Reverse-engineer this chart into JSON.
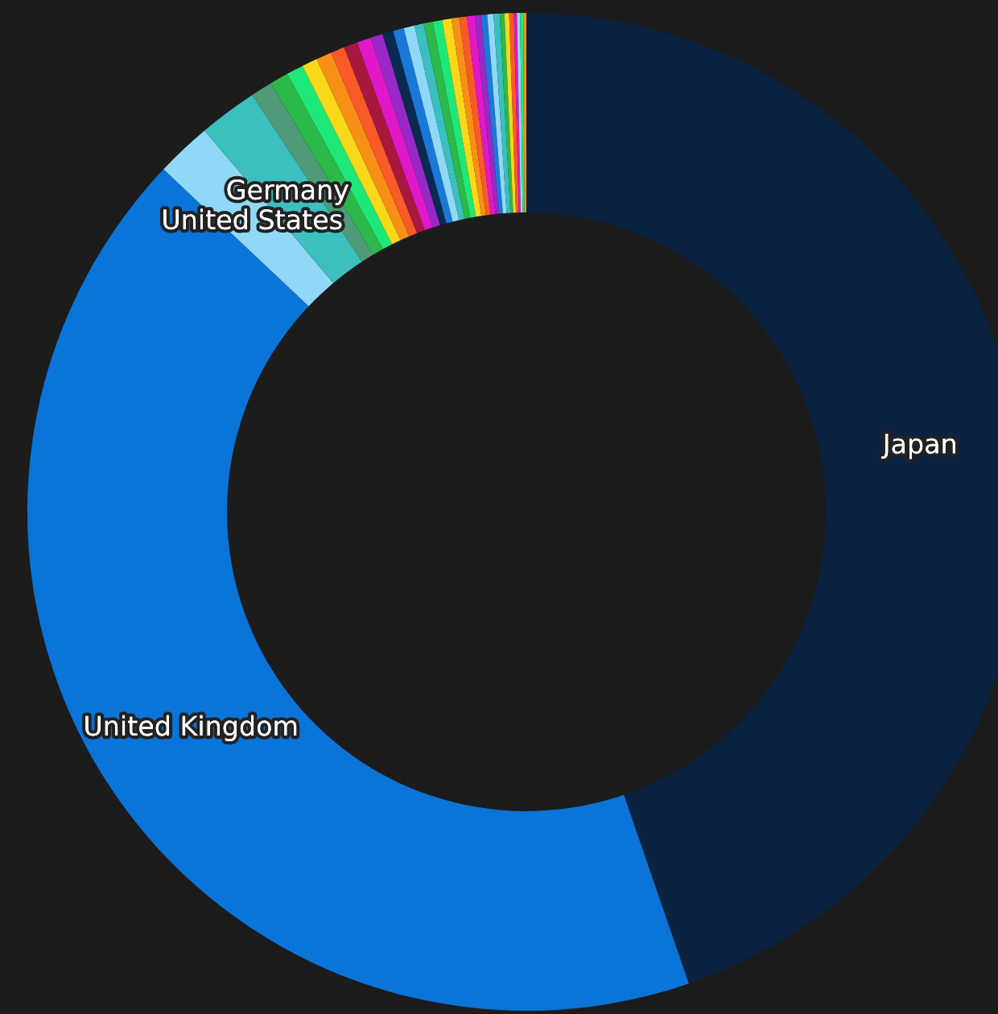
{
  "chart_data": {
    "type": "donut",
    "categories": [
      "Japan",
      "United Kingdom",
      "United States",
      "Germany",
      null,
      null,
      null,
      null,
      null,
      null,
      null,
      null,
      null,
      null,
      null,
      null,
      null,
      null,
      null,
      null,
      null,
      null,
      null,
      null,
      null,
      null,
      null,
      null,
      null,
      null,
      null,
      null,
      null,
      null
    ],
    "values": [
      44.7,
      42.3,
      1.8,
      1.9,
      0.7,
      0.6,
      0.55,
      0.5,
      0.5,
      0.45,
      0.45,
      0.45,
      0.4,
      0.35,
      0.35,
      0.35,
      0.3,
      0.3,
      0.3,
      0.3,
      0.25,
      0.25,
      0.25,
      0.2,
      0.2,
      0.2,
      0.2,
      0.15,
      0.15,
      0.15,
      0.1,
      0.1,
      0.1,
      0.1
    ],
    "colors": [
      "#0b2340",
      "#0a74d8",
      "#8fd8f8",
      "#3bbfbf",
      "#4f9a78",
      "#2db84a",
      "#1ee878",
      "#f8d818",
      "#f89018",
      "#f85a28",
      "#a8183c",
      "#e018c8",
      "#9a28c8",
      "#0a2a50",
      "#1a78d8",
      "#8fd8f8",
      "#3bbfbf",
      "#2db84a",
      "#1ee878",
      "#f8d818",
      "#f89018",
      "#f85a28",
      "#e018c8",
      "#9a28c8",
      "#1a78d8",
      "#8fd8f8",
      "#3bbfbf",
      "#2db84a",
      "#f8d818",
      "#f85a28",
      "#e018c8",
      "#8fd8f8",
      "#1ee878",
      "#f89018"
    ]
  }
}
